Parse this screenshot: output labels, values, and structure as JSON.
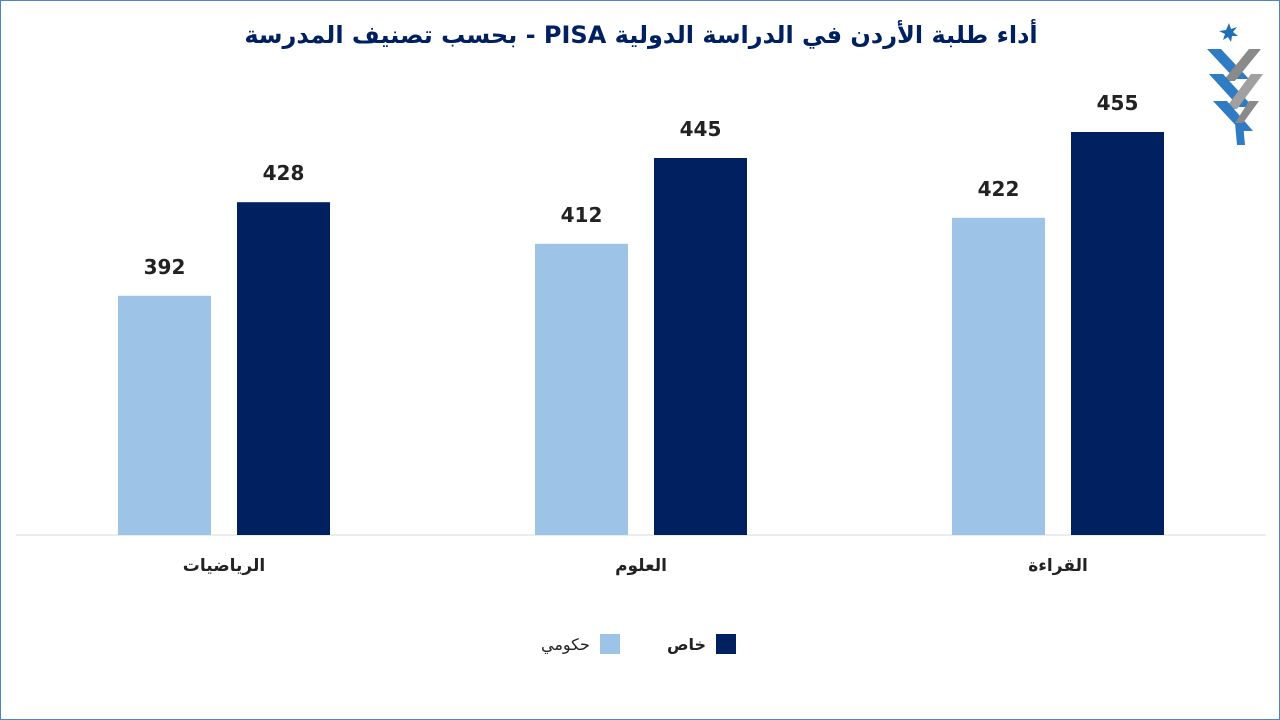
{
  "chart_data": {
    "type": "bar",
    "title": "أداء طلبة الأردن في الدراسة الدولية PISA  - بحسب تصنيف المدرسة",
    "categories": [
      "الرياضيات",
      "العلوم",
      "القراءة"
    ],
    "series": [
      {
        "name": "حكومي",
        "color": "#9dc3e6",
        "values": [
          392,
          412,
          422
        ]
      },
      {
        "name": "خاص",
        "color": "#002060",
        "values": [
          428,
          445,
          455
        ]
      }
    ],
    "ylim": [
      300,
      480
    ],
    "grid": false,
    "data_labels": true,
    "legend_position": "bottom"
  },
  "colors": {
    "border": "#4a86c5",
    "title": "#002060",
    "axis": "#d9d9d9"
  },
  "logo": {
    "icon": "jordan-star-emblem-icon"
  }
}
